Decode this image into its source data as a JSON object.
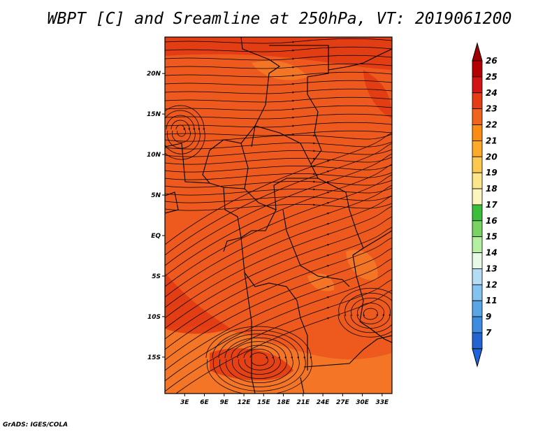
{
  "title": "WBPT [C] and Sreamline at 250hPa, VT: 2019061200",
  "credit": "GrADS: IGES/COLA",
  "map": {
    "lat_ticks": [
      "20N",
      "15N",
      "10N",
      "5N",
      "EQ",
      "5S",
      "10S",
      "15S"
    ],
    "lat_values": [
      20,
      15,
      10,
      5,
      0,
      -5,
      -10,
      -15
    ],
    "lon_ticks": [
      "3E",
      "6E",
      "9E",
      "12E",
      "15E",
      "18E",
      "21E",
      "24E",
      "27E",
      "30E",
      "33E"
    ],
    "lon_values": [
      3,
      6,
      9,
      12,
      15,
      18,
      21,
      24,
      27,
      30,
      33
    ],
    "lon_range": [
      0,
      34.5
    ],
    "lat_range": [
      -19.5,
      24.5
    ],
    "field_colors": {
      "dominant": "#ee5a1e",
      "warm_band": "#e03a12",
      "cool_patch": "#f37a27"
    }
  },
  "colorbar": {
    "labels": [
      "26",
      "25",
      "24",
      "23",
      "22",
      "21",
      "20",
      "19",
      "18",
      "17",
      "16",
      "15",
      "14",
      "13",
      "12",
      "11",
      "9",
      "7"
    ],
    "colors": [
      "#b40000",
      "#d21414",
      "#e63c14",
      "#f0641e",
      "#fa8c14",
      "#fcaa28",
      "#fcc850",
      "#fce68c",
      "#fcf5be",
      "#3cbe3c",
      "#78d264",
      "#b4f0a0",
      "#e6fae6",
      "#b4dcf5",
      "#82c3f0",
      "#5aa5e6",
      "#3c8ce1",
      "#2264d2"
    ]
  }
}
